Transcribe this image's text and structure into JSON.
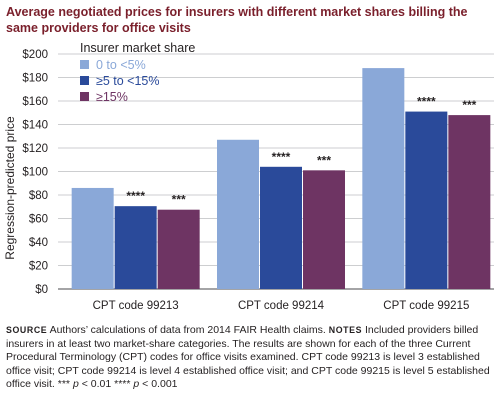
{
  "title": "Average negotiated prices for insurers with different market shares billing the same providers for office visits",
  "notes": {
    "source_label": "SOURCE",
    "source_text": "Authors’ calculations of data from 2014 FAIR Health claims.",
    "notes_label": "NOTES",
    "notes_text": "Included providers billed insurers in at least two market-share categories. The results are shown for each of the three Current Procedural Terminology (CPT) codes for office visits examined. CPT code 99213 is level 3 established office visit; CPT code 99214 is level 4 established office visit; and CPT code 99215 is level 5 established office visit.",
    "sig1_stars": "***",
    "sig1_p": "p",
    "sig1_rest": "< 0.01",
    "sig2_stars": "****",
    "sig2_p": "p",
    "sig2_rest": "< 0.001"
  },
  "colors": {
    "s1": "#8aa8d8",
    "s2": "#2a4a9a",
    "s3": "#6e3463",
    "title": "#7a1f2b",
    "legend_title": "#231f20",
    "legend_s1": "#8aa8d8",
    "legend_s2": "#2a4a9a",
    "legend_s3": "#6e3463"
  },
  "chart_data": {
    "type": "bar",
    "ylabel": "Regression-predicted price",
    "ylim": [
      0,
      200
    ],
    "yticks": [
      0,
      20,
      40,
      60,
      80,
      100,
      120,
      140,
      160,
      180,
      200
    ],
    "ytick_labels": [
      "$0",
      "$20",
      "$40",
      "$60",
      "$80",
      "$100",
      "$120",
      "$140",
      "$160",
      "$180",
      "$200"
    ],
    "categories": [
      "CPT code 99213",
      "CPT code 99214",
      "CPT code 99215"
    ],
    "legend_title": "Insurer market share",
    "legend_position": "top-left",
    "grid": true,
    "series": [
      {
        "name": "0 to <5%",
        "values": [
          86,
          127,
          188
        ],
        "annotations": [
          "",
          "",
          ""
        ]
      },
      {
        "name": "≥5 to <15%",
        "values": [
          70.5,
          104,
          151
        ],
        "annotations": [
          "****",
          "****",
          "****"
        ]
      },
      {
        "name": "≥15%",
        "values": [
          67.5,
          101,
          148
        ],
        "annotations": [
          "***",
          "***",
          "***"
        ]
      }
    ]
  }
}
